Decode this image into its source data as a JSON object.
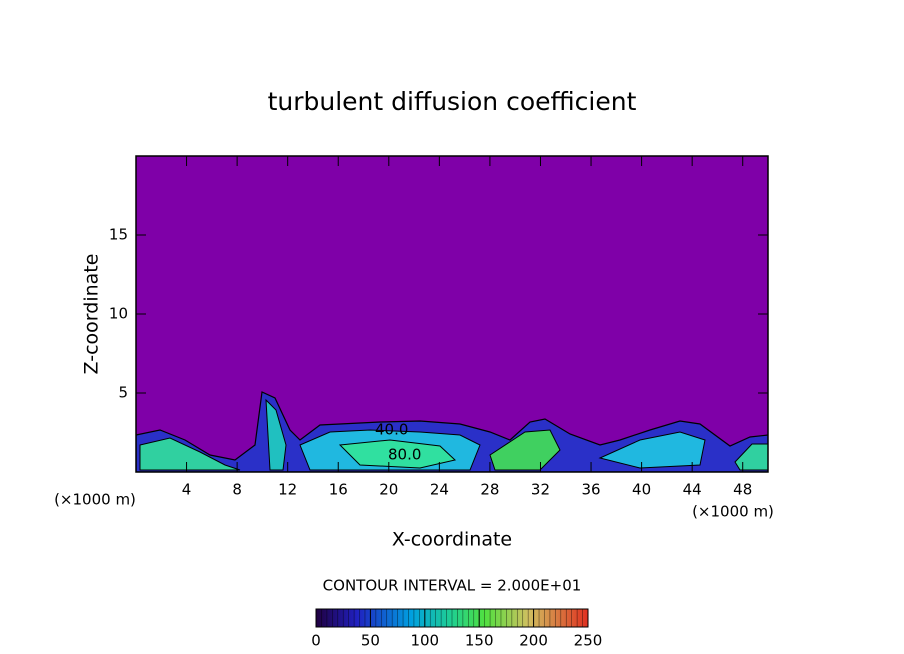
{
  "chart_data": {
    "type": "contour",
    "title": "turbulent diffusion coefficient",
    "x_label": "X-coordinate",
    "y_label": "Z-coordinate",
    "x_unit_label": "(×1000 m)",
    "y_unit_label": "(×1000 m)",
    "xlim": [
      0,
      50
    ],
    "xticks": [
      4,
      8,
      12,
      16,
      20,
      24,
      28,
      32,
      36,
      40,
      44,
      48
    ],
    "ylim": [
      0,
      20
    ],
    "yticks": [
      5,
      10,
      15
    ],
    "background_color": "#7f00a8",
    "contour_labels": [
      "40.0",
      "80.0"
    ],
    "contour_interval_label": "CONTOUR INTERVAL = 2.000E+01",
    "colorbar": {
      "lim": [
        0,
        250
      ],
      "ticks": [
        0,
        50,
        100,
        150,
        200,
        250
      ]
    }
  }
}
